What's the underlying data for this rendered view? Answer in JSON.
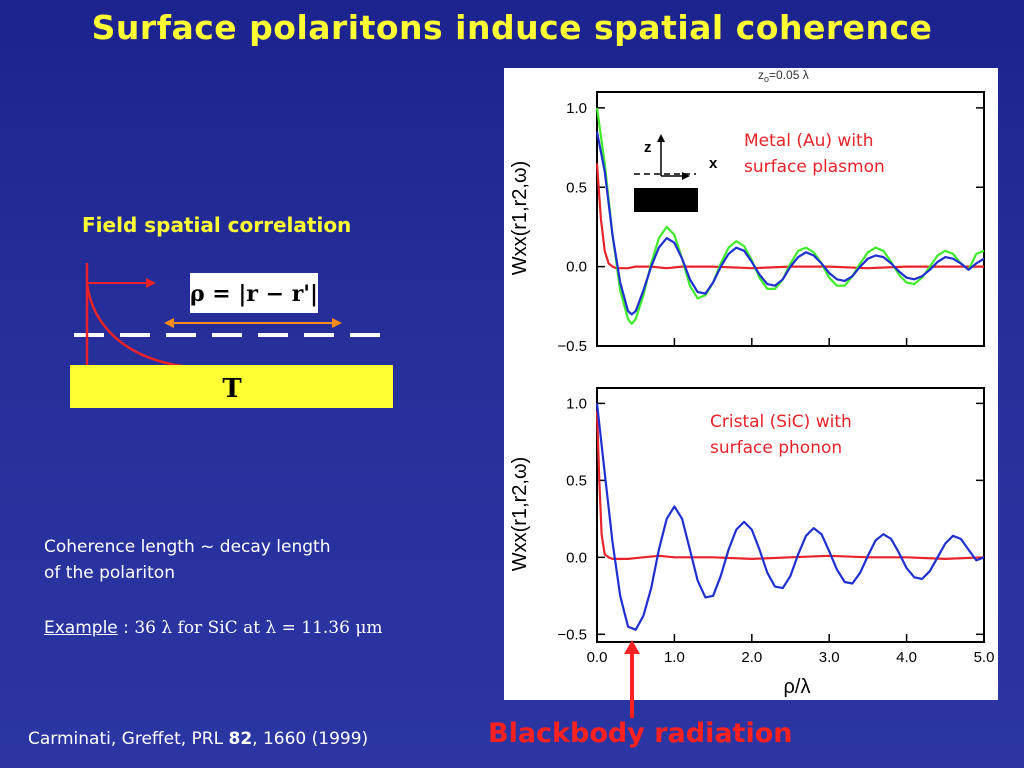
{
  "slide": {
    "title": "Surface polaritons induce spatial coherence",
    "field_title": "Field spatial correlation",
    "rho_formula": "ρ = |r − r'|",
    "t_label": "T",
    "coherence_line1": "Coherence length ~ decay length",
    "coherence_line2": "of the polariton",
    "example_word": "Example",
    "example_colon": " : ",
    "example_rest": "36 λ for SiC at λ = 11.36 μm",
    "blackbody": "Blackbody radiation",
    "citation_pre": "Carminati, Greffet, PRL ",
    "citation_bold": "82",
    "citation_post": ", 1660 (1999)"
  },
  "figure": {
    "z0_label": "z",
    "z0_sub": "o",
    "z0_value": "=0.05 λ",
    "axis_z": "z",
    "axis_x": "x",
    "top_annotation_1": "Metal (Au) with",
    "top_annotation_2": "surface plasmon",
    "bottom_annotation_1": "Cristal (SiC) with",
    "bottom_annotation_2": "surface phonon",
    "ylabel": "Wxx(r1,r2,ω)",
    "xlabel": "ρ/λ"
  },
  "chart_data": [
    {
      "type": "line",
      "title": "",
      "xlabel": "",
      "ylabel": "Wxx(r1,r2,ω)",
      "xlim": [
        0,
        5
      ],
      "ylim": [
        -0.5,
        1.1
      ],
      "yticks": [
        "1.0",
        "0.5",
        "0.0",
        "−0.5"
      ],
      "grid": false,
      "colors": {
        "red": "#e8232a",
        "blue": "#1f2fd0",
        "green": "#3fea2a"
      },
      "series": [
        {
          "x": [
            0,
            0.05,
            0.1,
            0.15,
            0.2,
            0.25,
            0.3,
            0.4,
            0.5,
            0.7,
            0.9,
            1.1,
            1.5,
            2.0,
            2.5,
            3.0,
            3.5,
            4.0,
            4.5,
            5.0
          ],
          "y": [
            0.65,
            0.3,
            0.1,
            0.02,
            0.0,
            -0.01,
            -0.01,
            -0.01,
            0.0,
            0.0,
            -0.01,
            0.0,
            0.0,
            -0.01,
            0.0,
            0.0,
            -0.01,
            0.0,
            0.0,
            0.0
          ]
        },
        {
          "x": [
            0,
            0.1,
            0.2,
            0.3,
            0.4,
            0.45,
            0.5,
            0.6,
            0.7,
            0.8,
            0.9,
            1.0,
            1.1,
            1.2,
            1.3,
            1.4,
            1.5,
            1.6,
            1.7,
            1.8,
            1.9,
            2.0,
            2.1,
            2.2,
            2.3,
            2.4,
            2.5,
            2.6,
            2.7,
            2.8,
            2.9,
            3.0,
            3.1,
            3.2,
            3.3,
            3.4,
            3.5,
            3.6,
            3.7,
            3.8,
            3.9,
            4.0,
            4.1,
            4.2,
            4.3,
            4.4,
            4.5,
            4.6,
            4.7,
            4.8,
            4.9,
            5.0
          ],
          "y": [
            0.85,
            0.6,
            0.2,
            -0.1,
            -0.28,
            -0.3,
            -0.28,
            -0.15,
            0.0,
            0.12,
            0.18,
            0.15,
            0.05,
            -0.08,
            -0.16,
            -0.17,
            -0.1,
            0.0,
            0.08,
            0.12,
            0.1,
            0.03,
            -0.05,
            -0.11,
            -0.12,
            -0.08,
            0.0,
            0.06,
            0.09,
            0.07,
            0.02,
            -0.04,
            -0.08,
            -0.09,
            -0.06,
            0.0,
            0.05,
            0.07,
            0.06,
            0.02,
            -0.03,
            -0.07,
            -0.08,
            -0.06,
            -0.02,
            0.03,
            0.06,
            0.05,
            0.02,
            -0.02,
            0.02,
            0.05
          ]
        },
        {
          "x": [
            0,
            0.1,
            0.2,
            0.3,
            0.4,
            0.45,
            0.5,
            0.6,
            0.7,
            0.8,
            0.9,
            1.0,
            1.1,
            1.2,
            1.3,
            1.4,
            1.5,
            1.6,
            1.7,
            1.8,
            1.9,
            2.0,
            2.1,
            2.2,
            2.3,
            2.4,
            2.5,
            2.6,
            2.7,
            2.8,
            2.9,
            3.0,
            3.1,
            3.2,
            3.3,
            3.4,
            3.5,
            3.6,
            3.7,
            3.8,
            3.9,
            4.0,
            4.1,
            4.2,
            4.3,
            4.4,
            4.5,
            4.6,
            4.7,
            4.8,
            4.9,
            5.0
          ],
          "y": [
            1.0,
            0.65,
            0.2,
            -0.15,
            -0.33,
            -0.36,
            -0.33,
            -0.18,
            0.02,
            0.18,
            0.25,
            0.2,
            0.05,
            -0.12,
            -0.2,
            -0.18,
            -0.1,
            0.02,
            0.12,
            0.16,
            0.13,
            0.04,
            -0.07,
            -0.14,
            -0.14,
            -0.08,
            0.02,
            0.1,
            0.12,
            0.09,
            0.02,
            -0.07,
            -0.12,
            -0.12,
            -0.06,
            0.02,
            0.09,
            0.12,
            0.1,
            0.03,
            -0.05,
            -0.1,
            -0.11,
            -0.07,
            0.0,
            0.07,
            0.1,
            0.08,
            0.02,
            -0.02,
            0.08,
            0.1
          ]
        }
      ]
    },
    {
      "type": "line",
      "title": "",
      "xlabel": "ρ/λ",
      "ylabel": "Wxx(r1,r2,ω)",
      "xlim": [
        0,
        5
      ],
      "ylim": [
        -0.55,
        1.1
      ],
      "xticks": [
        "0.0",
        "1.0",
        "2.0",
        "3.0",
        "4.0",
        "5.0"
      ],
      "yticks": [
        "1.0",
        "0.5",
        "0.0",
        "−0.5"
      ],
      "grid": false,
      "colors": {
        "red": "#e8232a",
        "blue": "#1f2fd0"
      },
      "series": [
        {
          "x": [
            0,
            0.03,
            0.06,
            0.1,
            0.15,
            0.2,
            0.4,
            0.6,
            0.8,
            1.0,
            1.5,
            2.0,
            2.5,
            3.0,
            3.5,
            4.0,
            4.5,
            5.0
          ],
          "y": [
            0.95,
            0.5,
            0.15,
            0.02,
            0.0,
            -0.01,
            -0.01,
            0.0,
            0.01,
            0.0,
            0.0,
            -0.01,
            0.0,
            0.01,
            0.0,
            0.0,
            -0.01,
            0.0
          ]
        },
        {
          "x": [
            0,
            0.1,
            0.2,
            0.3,
            0.4,
            0.5,
            0.6,
            0.7,
            0.8,
            0.9,
            1.0,
            1.1,
            1.2,
            1.3,
            1.4,
            1.5,
            1.6,
            1.7,
            1.8,
            1.9,
            2.0,
            2.1,
            2.2,
            2.3,
            2.4,
            2.5,
            2.6,
            2.7,
            2.8,
            2.9,
            3.0,
            3.1,
            3.2,
            3.3,
            3.4,
            3.5,
            3.6,
            3.7,
            3.8,
            3.9,
            4.0,
            4.1,
            4.2,
            4.3,
            4.4,
            4.5,
            4.6,
            4.7,
            4.8,
            4.9,
            5.0
          ],
          "y": [
            1.0,
            0.55,
            0.1,
            -0.25,
            -0.45,
            -0.47,
            -0.38,
            -0.2,
            0.05,
            0.25,
            0.33,
            0.25,
            0.05,
            -0.15,
            -0.26,
            -0.25,
            -0.12,
            0.05,
            0.18,
            0.23,
            0.18,
            0.05,
            -0.1,
            -0.19,
            -0.2,
            -0.12,
            0.02,
            0.14,
            0.19,
            0.15,
            0.04,
            -0.08,
            -0.16,
            -0.17,
            -0.1,
            0.01,
            0.11,
            0.15,
            0.12,
            0.03,
            -0.07,
            -0.13,
            -0.14,
            -0.09,
            0.0,
            0.09,
            0.14,
            0.12,
            0.05,
            -0.02,
            0.0
          ]
        }
      ]
    }
  ]
}
